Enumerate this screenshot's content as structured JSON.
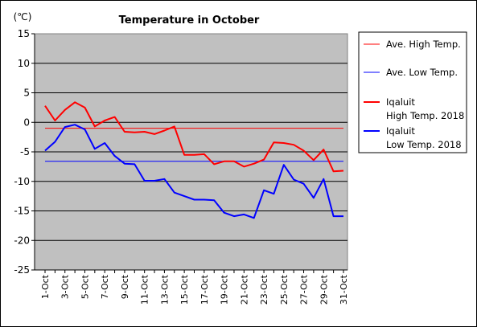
{
  "chart_data": {
    "type": "line",
    "title": "Temperature in October",
    "unit_label": "(℃)",
    "ylim": [
      -25,
      15
    ],
    "yticks": [
      15,
      10,
      5,
      0,
      -5,
      -10,
      -15,
      -20,
      -25
    ],
    "categories": [
      "1-Oct",
      "2-Oct",
      "3-Oct",
      "4-Oct",
      "5-Oct",
      "6-Oct",
      "7-Oct",
      "8-Oct",
      "9-Oct",
      "10-Oct",
      "11-Oct",
      "12-Oct",
      "13-Oct",
      "14-Oct",
      "15-Oct",
      "16-Oct",
      "17-Oct",
      "18-Oct",
      "19-Oct",
      "20-Oct",
      "21-Oct",
      "22-Oct",
      "23-Oct",
      "24-Oct",
      "25-Oct",
      "26-Oct",
      "27-Oct",
      "28-Oct",
      "29-Oct",
      "30-Oct",
      "31-Oct"
    ],
    "xtick_labels": [
      "1-Oct",
      "3-Oct",
      "5-Oct",
      "7-Oct",
      "9-Oct",
      "11-Oct",
      "13-Oct",
      "15-Oct",
      "17-Oct",
      "19-Oct",
      "21-Oct",
      "23-Oct",
      "25-Oct",
      "27-Oct",
      "29-Oct",
      "31-Oct"
    ],
    "grid": true,
    "legend_position": "right",
    "plot_background": "#c0c0c0",
    "series": [
      {
        "name": "Ave. High Temp.",
        "color": "#ff0000",
        "style": "thin",
        "constant": -1
      },
      {
        "name": "Ave. Low Temp.",
        "color": "#0000ff",
        "style": "thin",
        "constant": -6.6
      },
      {
        "name": "Iqaluit\nHigh Temp. 2018",
        "color": "#ff0000",
        "style": "thick",
        "values": [
          2.8,
          0.3,
          2.1,
          3.4,
          2.5,
          -0.7,
          0.3,
          0.9,
          -1.6,
          -1.7,
          -1.6,
          -2.0,
          -1.4,
          -0.7,
          -5.5,
          -5.5,
          -5.4,
          -7.1,
          -6.6,
          -6.6,
          -7.5,
          -7.0,
          -6.3,
          -3.4,
          -3.5,
          -3.8,
          -4.8,
          -6.4,
          -4.6,
          -8.3,
          -8.2
        ]
      },
      {
        "name": "Iqaluit\nLow Temp. 2018",
        "color": "#0000ff",
        "style": "thick",
        "values": [
          -4.8,
          -3.3,
          -0.8,
          -0.4,
          -1.2,
          -4.5,
          -3.5,
          -5.7,
          -7.0,
          -7.1,
          -9.9,
          -9.9,
          -9.6,
          -11.9,
          -12.5,
          -13.1,
          -13.1,
          -13.2,
          -15.3,
          -15.9,
          -15.6,
          -16.2,
          -11.5,
          -12.1,
          -7.2,
          -9.7,
          -10.4,
          -12.8,
          -9.6,
          -15.9,
          -15.9
        ]
      }
    ]
  }
}
